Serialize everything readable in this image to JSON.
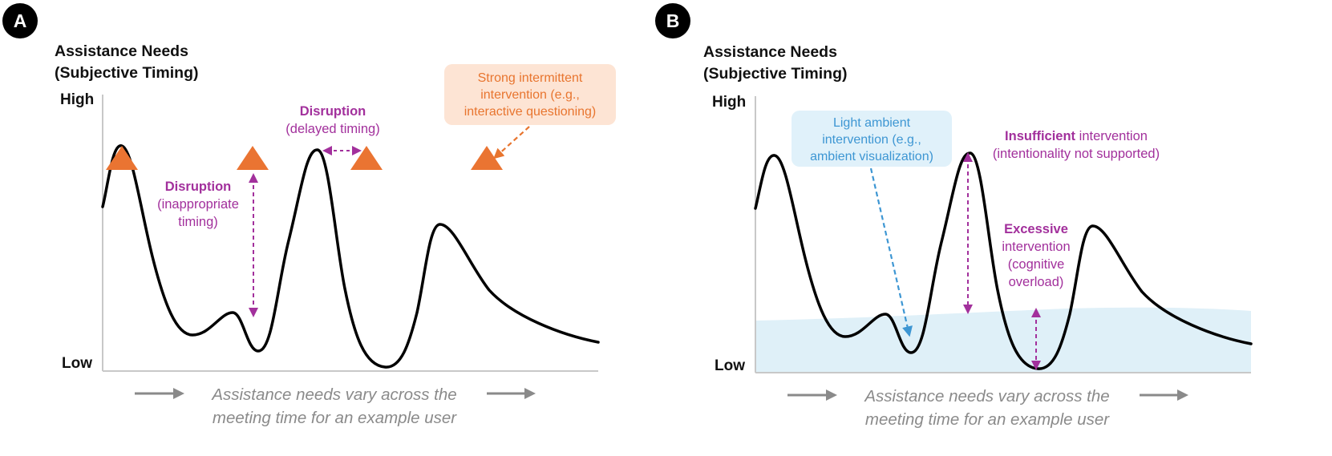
{
  "panels": [
    {
      "badge": "A",
      "y_title_line1": "Assistance Needs",
      "y_title_line2": "(Subjective Timing)",
      "tick_high": "High",
      "tick_low": "Low",
      "caption_line1": "Assistance needs vary across the",
      "caption_line2": "meeting time for an example user",
      "annotations": {
        "disruption_inappropriate": {
          "bold": "Disruption",
          "line2": "(inappropriate",
          "line3": "timing)"
        },
        "disruption_delayed": {
          "bold": "Disruption",
          "line2": "(delayed timing)"
        },
        "strong_callout": {
          "line1": "Strong intermittent",
          "line2": "intervention (e.g.,",
          "line3": "interactive questioning)"
        }
      }
    },
    {
      "badge": "B",
      "y_title_line1": "Assistance Needs",
      "y_title_line2": "(Subjective Timing)",
      "tick_high": "High",
      "tick_low": "Low",
      "caption_line1": "Assistance needs vary across the",
      "caption_line2": "meeting time for an example user",
      "annotations": {
        "light_callout": {
          "line1": "Light ambient",
          "line2": "intervention (e.g.,",
          "line3": "ambient visualization)"
        },
        "insufficient": {
          "bold": "Insufficient",
          "rest": " intervention",
          "line2": "(intentionality not supported)"
        },
        "excessive": {
          "bold": "Excessive",
          "line2": "intervention",
          "line3": "(cognitive",
          "line4": "overload)"
        }
      }
    }
  ],
  "colors": {
    "curve": "#000000",
    "axis": "#c8c8c8",
    "triangle": "#ea7432",
    "disruption": "#a2309c",
    "orange_text": "#e8752f",
    "orange_bg": "#fde4d4",
    "blue_text": "#3d96d3",
    "blue_bg": "#e0f1fa",
    "ambient_band": "#dff0f8",
    "caption_gray": "#8a8a8a",
    "arrow_gray": "#8a8a8a"
  }
}
